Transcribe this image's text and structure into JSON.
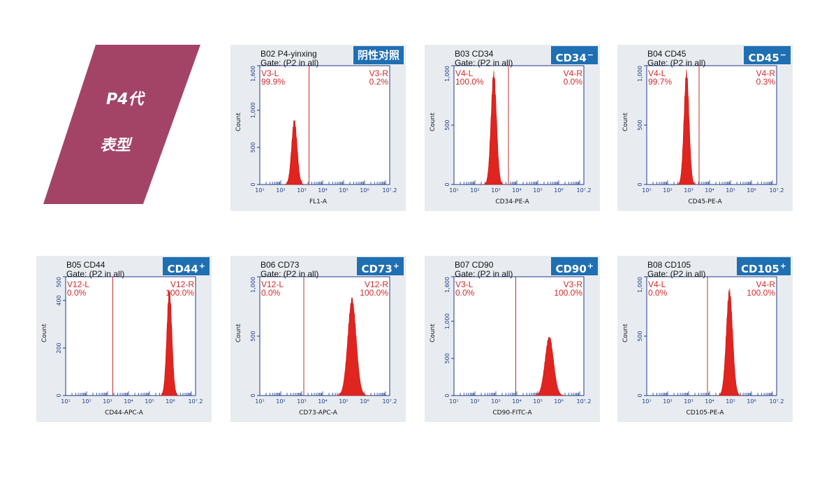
{
  "banner": {
    "line1": "P4代",
    "line2": "表型",
    "color": "#a34467"
  },
  "chart_data": [
    {
      "type": "area",
      "title": "B02 P4-yinxing",
      "gate": "Gate: (P2 in all)",
      "badge": "阴性对照",
      "badge_sup": "",
      "xlabel": "FL1-A",
      "ylabel": "Count",
      "xlim": [
        1,
        7.2
      ],
      "ylim": [
        0,
        1600
      ],
      "yticks": [
        0,
        500,
        1000,
        1600
      ],
      "ytick_labels": [
        "0",
        "500",
        "1,000",
        "1,600"
      ],
      "xtick_labels": [
        "10¹",
        "10²",
        "10³",
        "10⁴",
        "10⁵",
        "10⁶",
        "10⁷.2"
      ],
      "gate_x": 3.35,
      "peak": {
        "center": 2.65,
        "sigma": 0.13,
        "height": 850
      },
      "left": {
        "label": "V3-L",
        "pct": "99.9%"
      },
      "right": {
        "label": "V3-R",
        "pct": "0.2%"
      }
    },
    {
      "type": "area",
      "title": "B03 CD34",
      "gate": "Gate: (P2 in all)",
      "badge": "CD34",
      "badge_sup": "−",
      "xlabel": "CD34-PE-A",
      "ylabel": "Count",
      "xlim": [
        1,
        7.2
      ],
      "ylim": [
        0,
        1000
      ],
      "yticks": [
        0,
        500,
        1000
      ],
      "ytick_labels": [
        "0",
        "500",
        "1,000"
      ],
      "xtick_labels": [
        "10¹",
        "10²",
        "10³",
        "10⁴",
        "10⁵",
        "10⁶",
        "10⁷.2"
      ],
      "gate_x": 3.6,
      "peak": {
        "center": 2.9,
        "sigma": 0.13,
        "height": 920
      },
      "left": {
        "label": "V4-L",
        "pct": "100.0%"
      },
      "right": {
        "label": "V4-R",
        "pct": "0.0%"
      }
    },
    {
      "type": "area",
      "title": "B04 CD45",
      "gate": "Gate: (P2 in all)",
      "badge": "CD45",
      "badge_sup": "−",
      "xlabel": "CD45-PE-A",
      "ylabel": "Count",
      "xlim": [
        1,
        7.2
      ],
      "ylim": [
        0,
        1000
      ],
      "yticks": [
        0,
        500,
        1000
      ],
      "ytick_labels": [
        "0",
        "500",
        "1,000"
      ],
      "xtick_labels": [
        "10¹",
        "10²",
        "10³",
        "10⁴",
        "10⁵",
        "10⁶",
        "10⁷.2"
      ],
      "gate_x": 3.5,
      "peak": {
        "center": 2.9,
        "sigma": 0.12,
        "height": 930
      },
      "left": {
        "label": "V4-L",
        "pct": "99.7%"
      },
      "right": {
        "label": "V4-R",
        "pct": "0.3%"
      }
    },
    {
      "type": "area",
      "title": "B05 CD44",
      "gate": "Gate: (P2 in all)",
      "badge": "CD44",
      "badge_sup": "+",
      "xlabel": "CD44-APC-A",
      "ylabel": "Count",
      "xlim": [
        1,
        7.2
      ],
      "ylim": [
        0,
        500
      ],
      "yticks": [
        0,
        200,
        400,
        500
      ],
      "ytick_labels": [
        "0",
        "200",
        "400",
        "500"
      ],
      "xtick_labels": [
        "10¹",
        "10²",
        "10³",
        "10⁴",
        "10⁵",
        "10⁶",
        "10⁷.2"
      ],
      "gate_x": 3.25,
      "peak": {
        "center": 5.95,
        "sigma": 0.12,
        "height": 435
      },
      "left": {
        "label": "V12-L",
        "pct": "0.0%"
      },
      "right": {
        "label": "V12-R",
        "pct": "100.0%"
      }
    },
    {
      "type": "area",
      "title": "B06 CD73",
      "gate": "Gate: (P2 in all)",
      "badge": "CD73",
      "badge_sup": "+",
      "xlabel": "CD73-APC-A",
      "ylabel": "Count",
      "xlim": [
        1,
        7.2
      ],
      "ylim": [
        0,
        1000
      ],
      "yticks": [
        0,
        500,
        1000
      ],
      "ytick_labels": [
        "0",
        "500",
        "1,000"
      ],
      "xtick_labels": [
        "10¹",
        "10²",
        "10³",
        "10⁴",
        "10⁵",
        "10⁶",
        "10⁷.2"
      ],
      "gate_x": 3.1,
      "peak": {
        "center": 5.4,
        "sigma": 0.2,
        "height": 800
      },
      "left": {
        "label": "V12-L",
        "pct": "0.0%"
      },
      "right": {
        "label": "V12-R",
        "pct": "100.0%"
      }
    },
    {
      "type": "area",
      "title": "B07 CD90",
      "gate": "Gate: (P2 in all)",
      "badge": "CD90",
      "badge_sup": "+",
      "xlabel": "CD90-FITC-A",
      "ylabel": "Count",
      "xlim": [
        1,
        7.2
      ],
      "ylim": [
        0,
        1600
      ],
      "yticks": [
        0,
        500,
        1000,
        1600
      ],
      "ytick_labels": [
        "0",
        "500",
        "1,000",
        "1,600"
      ],
      "xtick_labels": [
        "10¹",
        "10²",
        "10³",
        "10⁴",
        "10⁵",
        "10⁶",
        "10⁷.2"
      ],
      "gate_x": 3.95,
      "peak": {
        "center": 5.55,
        "sigma": 0.2,
        "height": 780
      },
      "left": {
        "label": "V3-L",
        "pct": "0.0%"
      },
      "right": {
        "label": "V3-R",
        "pct": "100.0%"
      }
    },
    {
      "type": "area",
      "title": "B08 CD105",
      "gate": "Gate: (P2 in all)",
      "badge": "CD105",
      "badge_sup": "+",
      "xlabel": "CD105-PE-A",
      "ylabel": "Count",
      "xlim": [
        1,
        7.2
      ],
      "ylim": [
        0,
        1000
      ],
      "yticks": [
        0,
        500,
        1000
      ],
      "ytick_labels": [
        "0",
        "500",
        "1,000"
      ],
      "xtick_labels": [
        "10¹",
        "10²",
        "10³",
        "10⁴",
        "10⁵",
        "10⁶",
        "10⁷.2"
      ],
      "gate_x": 3.9,
      "peak": {
        "center": 4.95,
        "sigma": 0.15,
        "height": 870
      },
      "left": {
        "label": "V4-L",
        "pct": "0.0%"
      },
      "right": {
        "label": "V4-R",
        "pct": "100.0%"
      }
    }
  ]
}
